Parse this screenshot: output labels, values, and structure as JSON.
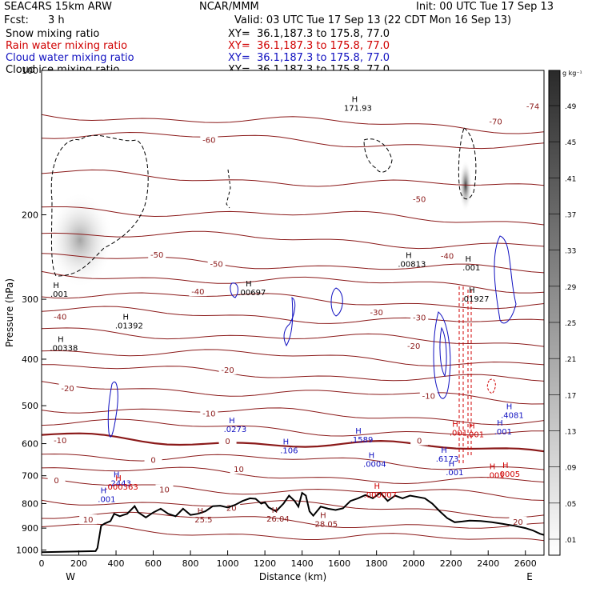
{
  "header": {
    "model": "SEAC4RS 15km ARW",
    "center": "NCAR/MMM",
    "init": "Init: 00 UTC Tue 17 Sep 13",
    "fcst_label": "Fcst:",
    "fcst_value": "3 h",
    "valid": "Valid: 03 UTC Tue 17 Sep 13 (22 CDT Mon 16 Sep 13)"
  },
  "fields": [
    {
      "name": "Snow mixing ratio",
      "xy": "XY=  36.1,187.3 to 175.8, 77.0",
      "color": "#000000"
    },
    {
      "name": "Rain water mixing ratio",
      "xy": "XY=  36.1,187.3 to 175.8, 77.0",
      "color": "#d00000"
    },
    {
      "name": "Cloud water mixing ratio",
      "xy": "XY=  36.1,187.3 to 175.8, 77.0",
      "color": "#1010c0"
    },
    {
      "name": "Cloud ice mixing ratio",
      "xy": "XY=  36.1,187.3 to 175.8, 77.0",
      "color": "#000000"
    }
  ],
  "colorbar": {
    "unit": "g kg⁻¹",
    "labels": [
      ".49",
      ".45",
      ".41",
      ".37",
      ".33",
      ".29",
      ".25",
      ".21",
      ".17",
      ".13",
      ".09",
      ".05",
      ".01"
    ]
  },
  "chart_data": {
    "type": "contour",
    "xlabel": "Distance (km)",
    "ylabel": "Pressure (hPa)",
    "xlim": [
      0,
      2700
    ],
    "ylim": [
      100,
      1025
    ],
    "y_scale": "log",
    "x_ticks": [
      0,
      200,
      400,
      600,
      800,
      1000,
      1200,
      1400,
      1600,
      1800,
      2000,
      2200,
      2400,
      2600
    ],
    "y_ticks": [
      1000,
      900,
      800,
      700,
      600,
      500,
      400,
      300,
      200,
      100
    ],
    "x_end_labels": {
      "left": "W",
      "right": "E"
    },
    "temperature_contours": {
      "unit": "C",
      "color": "#8b1a1a",
      "labels": [
        {
          "text": "-70",
          "x": 2440,
          "p": 128
        },
        {
          "text": "-74",
          "x": 2640,
          "p": 119
        },
        {
          "text": "-60",
          "x": 900,
          "p": 140
        },
        {
          "text": "-50",
          "x": 940,
          "p": 254
        },
        {
          "text": "-50",
          "x": 2030,
          "p": 186
        },
        {
          "text": "-50",
          "x": 620,
          "p": 243
        },
        {
          "text": "-40",
          "x": 840,
          "p": 290
        },
        {
          "text": "-40",
          "x": 2180,
          "p": 244
        },
        {
          "text": "-40",
          "x": 100,
          "p": 327
        },
        {
          "text": "-30",
          "x": 1800,
          "p": 320
        },
        {
          "text": "-30",
          "x": 2030,
          "p": 328
        },
        {
          "text": "-20",
          "x": 2000,
          "p": 376
        },
        {
          "text": "-20",
          "x": 1000,
          "p": 422
        },
        {
          "text": "-20",
          "x": 140,
          "p": 461
        },
        {
          "text": "-10",
          "x": 2080,
          "p": 478
        },
        {
          "text": "-10",
          "x": 900,
          "p": 520
        },
        {
          "text": "-10",
          "x": 100,
          "p": 592
        },
        {
          "text": "0",
          "x": 1000,
          "p": 594
        },
        {
          "text": "0",
          "x": 2030,
          "p": 593
        },
        {
          "text": "0",
          "x": 600,
          "p": 650
        },
        {
          "text": "0",
          "x": 80,
          "p": 717
        },
        {
          "text": "10",
          "x": 1060,
          "p": 680
        },
        {
          "text": "10",
          "x": 660,
          "p": 750
        },
        {
          "text": "10",
          "x": 250,
          "p": 866
        },
        {
          "text": "20",
          "x": 1020,
          "p": 818
        },
        {
          "text": "20",
          "x": 2560,
          "p": 875
        }
      ]
    },
    "maxima": [
      {
        "label": ".001",
        "x": 95,
        "p": 293,
        "color": "#000000"
      },
      {
        "label": ".01392",
        "x": 470,
        "p": 341,
        "color": "#000000"
      },
      {
        "label": ".00338",
        "x": 120,
        "p": 380,
        "color": "#000000"
      },
      {
        "label": ".00697",
        "x": 1130,
        "p": 291,
        "color": "#000000"
      },
      {
        "label": ".00813",
        "x": 1990,
        "p": 254,
        "color": "#000000"
      },
      {
        "label": ".001",
        "x": 2310,
        "p": 258,
        "color": "#000000"
      },
      {
        "label": ".01927",
        "x": 2330,
        "p": 300,
        "color": "#000000"
      },
      {
        "label": "171.93",
        "x": 1700,
        "p": 120,
        "color": "#000000"
      },
      {
        "label": ".0273",
        "x": 1040,
        "p": 561,
        "color": "#1010c0"
      },
      {
        "label": ".106",
        "x": 1330,
        "p": 621,
        "color": "#1010c0"
      },
      {
        "label": ".1589",
        "x": 1720,
        "p": 590,
        "color": "#1010c0"
      },
      {
        "label": ".0004",
        "x": 1790,
        "p": 663,
        "color": "#1010c0"
      },
      {
        "label": ".4081",
        "x": 2530,
        "p": 524,
        "color": "#1010c0"
      },
      {
        "label": ".001",
        "x": 2480,
        "p": 567,
        "color": "#1010c0"
      },
      {
        "label": ".6173",
        "x": 2180,
        "p": 646,
        "color": "#1010c0"
      },
      {
        "label": ".001",
        "x": 2220,
        "p": 690,
        "color": "#1010c0"
      },
      {
        "label": ".2443",
        "x": 420,
        "p": 727,
        "color": "#1010c0"
      },
      {
        "label": ".001",
        "x": 350,
        "p": 785,
        "color": "#1010c0"
      },
      {
        "label": ".001",
        "x": 2240,
        "p": 571,
        "color": "#d00000"
      },
      {
        "label": ".001",
        "x": 2330,
        "p": 575,
        "color": "#d00000"
      },
      {
        "label": ".000363",
        "x": 430,
        "p": 740,
        "color": "#d00000"
      },
      {
        "label": ".000007",
        "x": 1820,
        "p": 769,
        "color": "#d00000"
      },
      {
        "label": ".0005",
        "x": 2510,
        "p": 696,
        "color": "#d00000"
      },
      {
        "label": ".001",
        "x": 2440,
        "p": 700,
        "color": "#d00000"
      },
      {
        "label": "25.5",
        "x": 870,
        "p": 865,
        "color": "#8b1a1a"
      },
      {
        "label": "26.04",
        "x": 1270,
        "p": 862,
        "color": "#8b1a1a"
      },
      {
        "label": "28.05",
        "x": 1530,
        "p": 884,
        "color": "#8b1a1a"
      }
    ],
    "terrain": {
      "color": "#000000",
      "x": [
        0,
        290,
        300,
        320,
        340,
        370,
        390,
        420,
        440,
        460,
        500,
        520,
        560,
        600,
        640,
        680,
        720,
        760,
        800,
        840,
        880,
        920,
        960,
        1000,
        1040,
        1080,
        1120,
        1150,
        1180,
        1200,
        1220,
        1260,
        1300,
        1330,
        1360,
        1380,
        1400,
        1420,
        1440,
        1460,
        1500,
        1540,
        1580,
        1620,
        1660,
        1700,
        1740,
        1780,
        1820,
        1860,
        1900,
        1940,
        1980,
        2020,
        2060,
        2100,
        2140,
        2180,
        2220,
        2260,
        2300,
        2360,
        2420,
        2480,
        2540,
        2600,
        2640,
        2680,
        2700
      ],
      "p": [
        1010,
        1005,
        990,
        890,
        880,
        870,
        840,
        850,
        845,
        840,
        810,
        835,
        855,
        835,
        820,
        840,
        850,
        820,
        845,
        840,
        830,
        810,
        808,
        815,
        805,
        790,
        780,
        782,
        800,
        795,
        815,
        830,
        800,
        770,
        790,
        812,
        760,
        770,
        830,
        848,
        812,
        820,
        825,
        818,
        790,
        780,
        768,
        780,
        760,
        790,
        770,
        780,
        770,
        775,
        780,
        800,
        830,
        858,
        875,
        872,
        868,
        870,
        875,
        882,
        890,
        900,
        910,
        925,
        930
      ]
    }
  }
}
